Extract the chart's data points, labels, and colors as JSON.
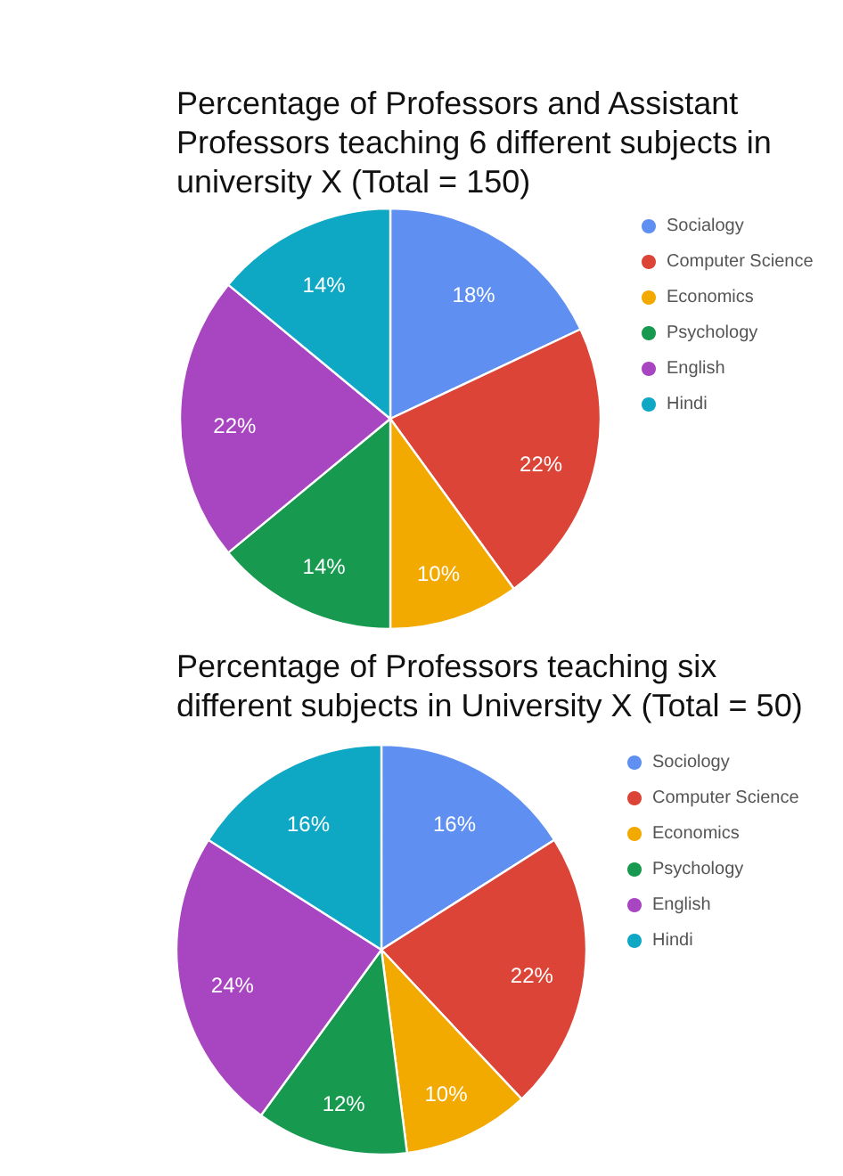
{
  "chart_data": [
    {
      "type": "pie",
      "title": "Percentage of Professors and Assistant Professors teaching 6 different subjects in university X (Total = 150)",
      "categories": [
        "Socialogy",
        "Computer Science",
        "Economics",
        "Psychology",
        "English",
        "Hindi"
      ],
      "values": [
        18,
        22,
        10,
        14,
        22,
        14
      ],
      "value_labels": [
        "18%",
        "22%",
        "10%",
        "14%",
        "22%",
        "14%"
      ],
      "colors": [
        "#5f8ff0",
        "#db4437",
        "#f2a900",
        "#17994f",
        "#a845c0",
        "#0fa8c4"
      ],
      "legend": "top right"
    },
    {
      "type": "pie",
      "title": "Percentage of Professors teaching six different subjects in University X (Total = 50)",
      "categories": [
        "Sociology",
        "Computer Science",
        "Economics",
        "Psychology",
        "English",
        "Hindi"
      ],
      "values": [
        16,
        22,
        10,
        12,
        24,
        16
      ],
      "value_labels": [
        "16%",
        "22%",
        "10%",
        "12%",
        "24%",
        "16%"
      ],
      "colors": [
        "#5f8ff0",
        "#db4437",
        "#f2a900",
        "#17994f",
        "#a845c0",
        "#0fa8c4"
      ],
      "legend": "top right"
    }
  ]
}
